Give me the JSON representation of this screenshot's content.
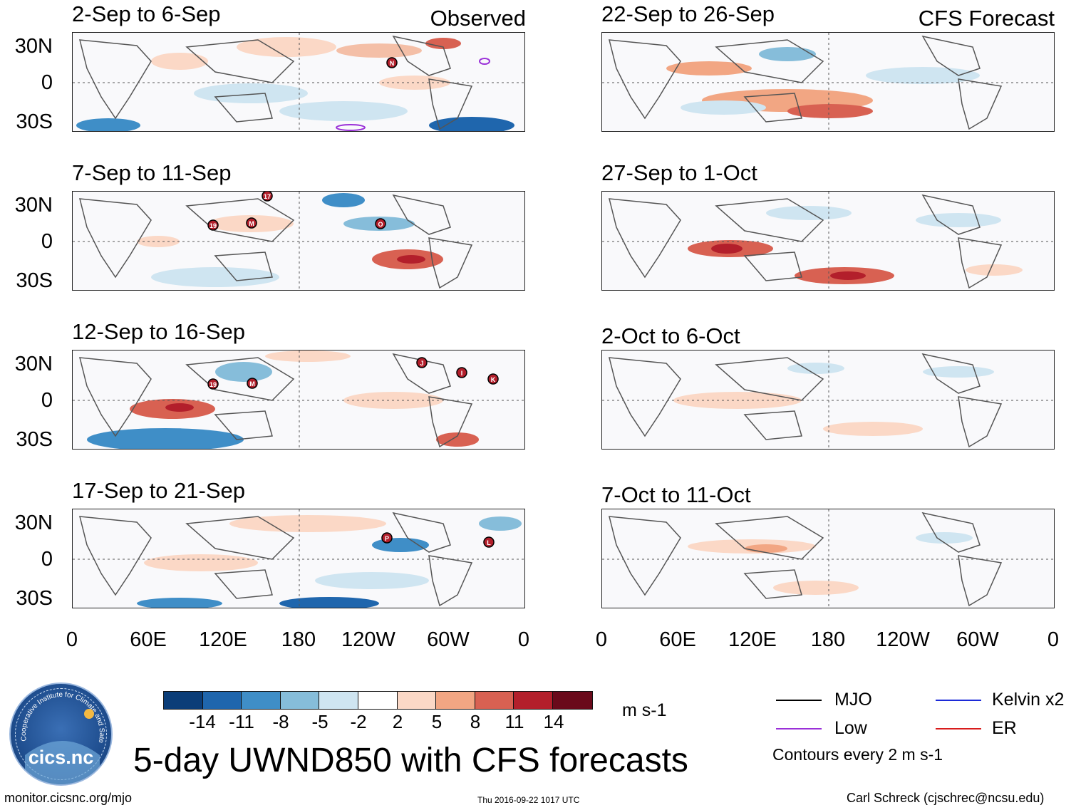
{
  "colors": {
    "scale": [
      "#0b3d78",
      "#1f66ad",
      "#3f8ec7",
      "#86bdda",
      "#cfe5f1",
      "#ffffff",
      "#fbd8c6",
      "#f2a683",
      "#d86152",
      "#b31f2b",
      "#6a0a1b"
    ],
    "mjo": "#000000",
    "low": "#9a30d8",
    "kelvin": "#1c2ad8",
    "er": "#d81c1c",
    "coast": "#555555"
  },
  "panels_observed": [
    {
      "title": "2-Sep to 6-Sep",
      "tag": "Observed"
    },
    {
      "title": "7-Sep to 11-Sep"
    },
    {
      "title": "12-Sep to 16-Sep"
    },
    {
      "title": "17-Sep to 21-Sep"
    }
  ],
  "panels_forecast": [
    {
      "title": "22-Sep to 26-Sep",
      "tag": "CFS Forecast"
    },
    {
      "title": "27-Sep to 1-Oct"
    },
    {
      "title": "2-Oct to 6-Oct"
    },
    {
      "title": "7-Oct to 11-Oct"
    }
  ],
  "lat_labels": [
    "30N",
    "0",
    "30S"
  ],
  "lon_labels": [
    "0",
    "60E",
    "120E",
    "180",
    "120W",
    "60W",
    "0"
  ],
  "storm_labels": [
    "N",
    "19",
    "M",
    "O",
    "17",
    "19",
    "M",
    "J",
    "I",
    "K",
    "P",
    "L"
  ],
  "colorbar": {
    "labels": [
      "-14",
      "-11",
      "-8",
      "-5",
      "-2",
      "2",
      "5",
      "8",
      "11",
      "14"
    ],
    "units": "m s-1"
  },
  "legend": {
    "mjo": "MJO",
    "kelvin": "Kelvin x2",
    "low": "Low",
    "er": "ER",
    "contours": "Contours every 2 m s-1"
  },
  "logo": {
    "text": "cics.nc",
    "ring_text": "Cooperative Institute for Climate and Satellites"
  },
  "title": "5-day UWND850 with CFS forecasts",
  "footer": {
    "url": "monitor.cicsnc.org/mjo",
    "timestamp": "Thu 2016-09-22 1017 UTC",
    "author": "Carl Schreck (cjschrec@ncsu.edu)"
  }
}
